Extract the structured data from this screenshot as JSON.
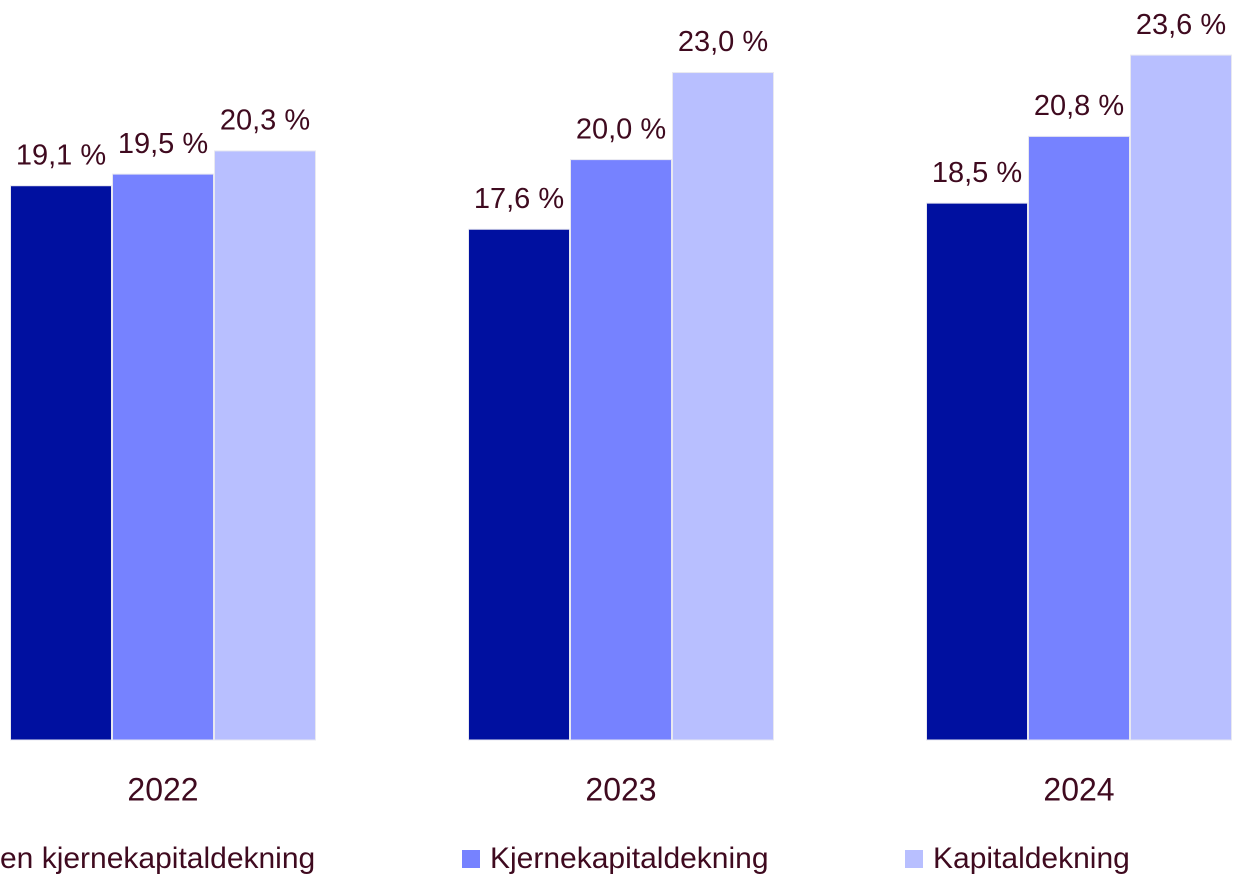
{
  "chart_data": {
    "type": "bar",
    "categories": [
      "2022",
      "2023",
      "2024"
    ],
    "series": [
      {
        "name": "en kjernekapitaldekning",
        "color": "#0010a0",
        "values": [
          19.1,
          17.6,
          18.5
        ],
        "value_labels": [
          "19,1 %",
          "17,6 %",
          "18,5 %"
        ]
      },
      {
        "name": "Kjernekapitaldekning",
        "color": "#7682ff",
        "values": [
          19.5,
          20.0,
          20.8
        ],
        "value_labels": [
          "19,5 %",
          "20,0 %",
          "20,8 %"
        ]
      },
      {
        "name": "Kapitaldekning",
        "color": "#b8bfff",
        "values": [
          20.3,
          23.0,
          23.6
        ],
        "value_labels": [
          "20,3 %",
          "23,0 %",
          "23,6 %"
        ]
      }
    ],
    "ylim": [
      0,
      25.5
    ],
    "legend": "bottom"
  }
}
